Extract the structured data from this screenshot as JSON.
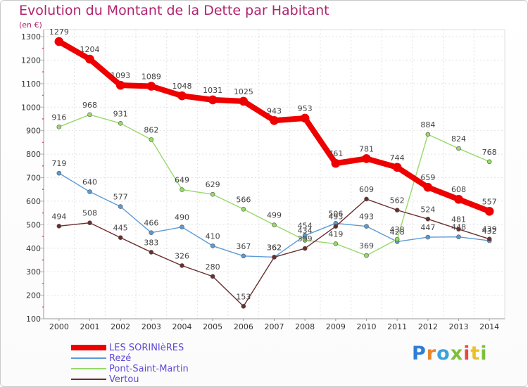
{
  "header": {
    "title": "Evolution du Montant de la Dette par Habitant",
    "subtitle": "(en €)"
  },
  "logo": {
    "text": "Proxiti"
  },
  "colors": {
    "sorinieres": "#ee0000",
    "reze": "#5b9bd5",
    "pont": "#98d96a",
    "vertou": "#6b2e2e"
  },
  "chart_data": {
    "type": "line",
    "title": "Evolution du Montant de la Dette par Habitant",
    "ylabel": "(en €)",
    "xlabel": "",
    "ylim": [
      100,
      1300
    ],
    "yticks": [
      100,
      200,
      300,
      400,
      500,
      600,
      700,
      800,
      900,
      1000,
      1100,
      1200,
      1300
    ],
    "grid": true,
    "legend_position": "bottom-left",
    "x": [
      "2000",
      "2001",
      "2002",
      "2003",
      "2004",
      "2005",
      "2006",
      "2007",
      "2008",
      "2009",
      "2010",
      "2011",
      "2012",
      "2013",
      "2014"
    ],
    "series": [
      {
        "name": "LES SORINIèRES",
        "color": "#ee0000",
        "width": 8,
        "values": [
          1279,
          1204,
          1093,
          1089,
          1048,
          1031,
          1025,
          943,
          953,
          761,
          781,
          744,
          659,
          608,
          557
        ]
      },
      {
        "name": "Rezé",
        "color": "#5b9bd5",
        "width": 1.4,
        "values": [
          719,
          640,
          577,
          466,
          490,
          410,
          367,
          362,
          454,
          506,
          493,
          428,
          447,
          448,
          432
        ]
      },
      {
        "name": "Pont-Saint-Martin",
        "color": "#98d96a",
        "width": 1.4,
        "values": [
          916,
          968,
          931,
          862,
          649,
          629,
          566,
          499,
          434,
          419,
          369,
          438,
          884,
          824,
          768
        ]
      },
      {
        "name": "Vertou",
        "color": "#6b2e2e",
        "width": 1.4,
        "values": [
          494,
          508,
          445,
          383,
          326,
          280,
          153,
          362,
          399,
          493,
          609,
          562,
          524,
          481,
          439
        ]
      }
    ]
  }
}
